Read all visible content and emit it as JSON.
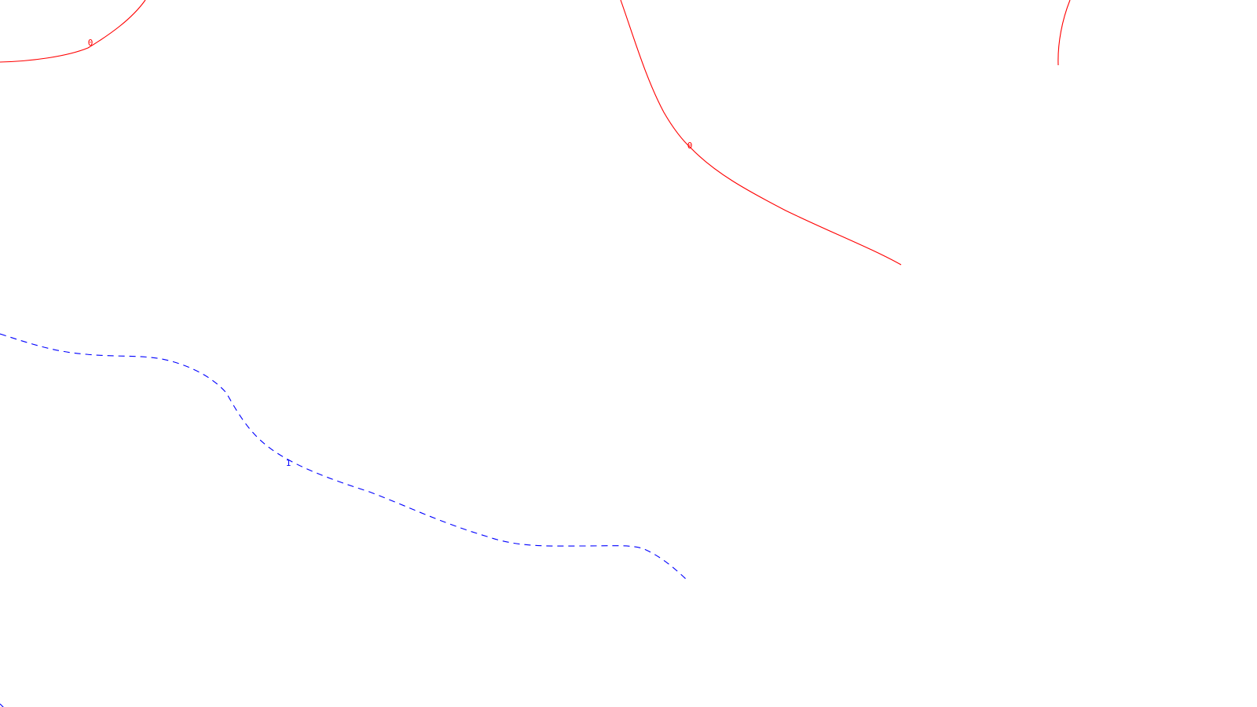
{
  "chart_data": {
    "type": "line",
    "title": "",
    "xlabel": "",
    "ylabel": "",
    "grid": false,
    "legend": "none",
    "series": [
      {
        "level": "0",
        "style": "solid",
        "color": "#ff0000",
        "segments": [
          {
            "label": "0",
            "labeled": true
          },
          {
            "label": "0",
            "labeled": true
          },
          {
            "label": "0",
            "labeled": false
          }
        ]
      },
      {
        "level": "1",
        "style": "dashed",
        "color": "#0000ff",
        "segments": [
          {
            "label": "1",
            "labeled": true
          },
          {
            "label": "1",
            "labeled": false
          }
        ]
      }
    ]
  }
}
